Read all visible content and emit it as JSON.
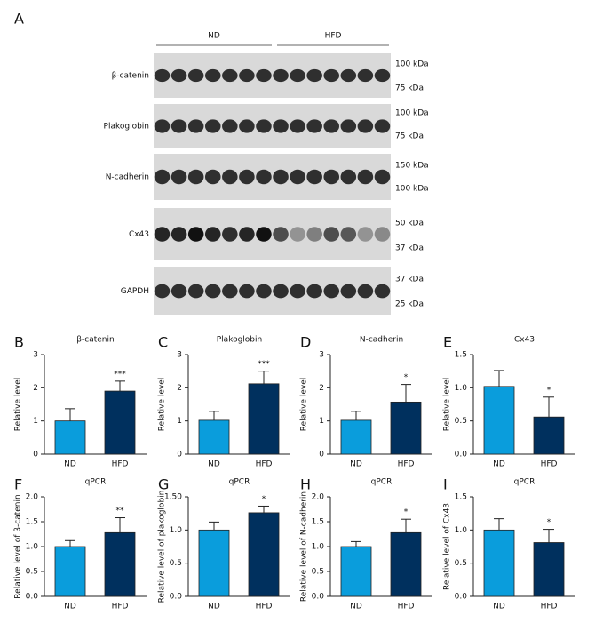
{
  "blot": {
    "panel": "A",
    "groups": [
      "ND",
      "HFD"
    ],
    "rows": [
      {
        "label": "β-catenin",
        "markers": [
          "100 kDa",
          "75 kDa"
        ]
      },
      {
        "label": "Plakoglobin",
        "markers": [
          "100 kDa",
          "75 kDa"
        ]
      },
      {
        "label": "N-cadherin",
        "markers": [
          "150 kDa",
          "100 kDa"
        ]
      },
      {
        "label": "Cx43",
        "markers": [
          "50 kDa",
          "37 kDa"
        ]
      },
      {
        "label": "GAPDH",
        "markers": [
          "37 kDa",
          "25 kDa"
        ]
      }
    ]
  },
  "chart_data": [
    {
      "type": "bar",
      "panel": "B",
      "title": "β-catenin",
      "ylabel": "Relative level",
      "categories": [
        "ND",
        "HFD"
      ],
      "values": [
        1.0,
        1.9
      ],
      "errors": [
        0.37,
        0.3
      ],
      "colors": [
        "#0a9ddc",
        "#00305e"
      ],
      "annotation": "***",
      "ylim": [
        0,
        3
      ],
      "yticks": [
        0,
        1,
        2,
        3
      ]
    },
    {
      "type": "bar",
      "panel": "C",
      "title": "Plakoglobin",
      "ylabel": "Relative level",
      "categories": [
        "ND",
        "HFD"
      ],
      "values": [
        1.02,
        2.12
      ],
      "errors": [
        0.27,
        0.38
      ],
      "colors": [
        "#0a9ddc",
        "#00305e"
      ],
      "annotation": "***",
      "ylim": [
        0,
        3
      ],
      "yticks": [
        0,
        1,
        2,
        3
      ]
    },
    {
      "type": "bar",
      "panel": "D",
      "title": "N-cadherin",
      "ylabel": "Relative level",
      "categories": [
        "ND",
        "HFD"
      ],
      "values": [
        1.02,
        1.57
      ],
      "errors": [
        0.27,
        0.53
      ],
      "colors": [
        "#0a9ddc",
        "#00305e"
      ],
      "annotation": "*",
      "ylim": [
        0,
        3
      ],
      "yticks": [
        0,
        1,
        2,
        3
      ]
    },
    {
      "type": "bar",
      "panel": "E",
      "title": "Cx43",
      "ylabel": "Relative level",
      "categories": [
        "ND",
        "HFD"
      ],
      "values": [
        1.02,
        0.56
      ],
      "errors": [
        0.24,
        0.3
      ],
      "colors": [
        "#0a9ddc",
        "#00305e"
      ],
      "annotation": "*",
      "ylim": [
        0,
        1.5
      ],
      "yticks": [
        {
          "value": 0,
          "label": "0.0"
        },
        {
          "value": 0.5,
          "label": "0.5"
        },
        {
          "value": 1,
          "label": "1.0"
        },
        {
          "value": 1.5,
          "label": "1.5"
        }
      ]
    },
    {
      "type": "bar",
      "panel": "F",
      "title": "qPCR",
      "ylabel": "Relative level of β-catenin",
      "categories": [
        "ND",
        "HFD"
      ],
      "values": [
        1.0,
        1.28
      ],
      "errors": [
        0.12,
        0.3
      ],
      "colors": [
        "#0a9ddc",
        "#00305e"
      ],
      "annotation": "**",
      "ylim": [
        0,
        2
      ],
      "yticks": [
        {
          "value": 0,
          "label": "0.0"
        },
        {
          "value": 0.5,
          "label": "0.5"
        },
        {
          "value": 1,
          "label": "1.0"
        },
        {
          "value": 1.5,
          "label": "1.5"
        },
        {
          "value": 2,
          "label": "2.0"
        }
      ]
    },
    {
      "type": "bar",
      "panel": "G",
      "title": "qPCR",
      "ylabel": "Relative level of plakoglobin",
      "categories": [
        "ND",
        "HFD"
      ],
      "values": [
        1.0,
        1.26
      ],
      "errors": [
        0.12,
        0.1
      ],
      "colors": [
        "#0a9ddc",
        "#00305e"
      ],
      "annotation": "*",
      "ylim": [
        0,
        1.5
      ],
      "yticks": [
        {
          "value": 0,
          "label": "0.0"
        },
        {
          "value": 0.5,
          "label": "0.5"
        },
        {
          "value": 1,
          "label": "1.0"
        },
        {
          "value": 1.5,
          "label": "1.50"
        }
      ]
    },
    {
      "type": "bar",
      "panel": "H",
      "title": "qPCR",
      "ylabel": "Relative level of N-cadherin",
      "categories": [
        "ND",
        "HFD"
      ],
      "values": [
        1.0,
        1.28
      ],
      "errors": [
        0.1,
        0.27
      ],
      "colors": [
        "#0a9ddc",
        "#00305e"
      ],
      "annotation": "*",
      "ylim": [
        0,
        2
      ],
      "yticks": [
        {
          "value": 0,
          "label": "0.0"
        },
        {
          "value": 0.5,
          "label": "0.5"
        },
        {
          "value": 1,
          "label": "1.0"
        },
        {
          "value": 1.5,
          "label": "1.5"
        },
        {
          "value": 2,
          "label": "2.0"
        }
      ]
    },
    {
      "type": "bar",
      "panel": "I",
      "title": "qPCR",
      "ylabel": "Relative level of Cx43",
      "categories": [
        "ND",
        "HFD"
      ],
      "values": [
        1.0,
        0.81
      ],
      "errors": [
        0.17,
        0.2
      ],
      "colors": [
        "#0a9ddc",
        "#00305e"
      ],
      "annotation": "*",
      "ylim": [
        0,
        1.5
      ],
      "yticks": [
        {
          "value": 0,
          "label": "0.0"
        },
        {
          "value": 0.5,
          "label": "0.5"
        },
        {
          "value": 1,
          "label": "1.0"
        },
        {
          "value": 1.5,
          "label": "1.5"
        }
      ]
    }
  ]
}
